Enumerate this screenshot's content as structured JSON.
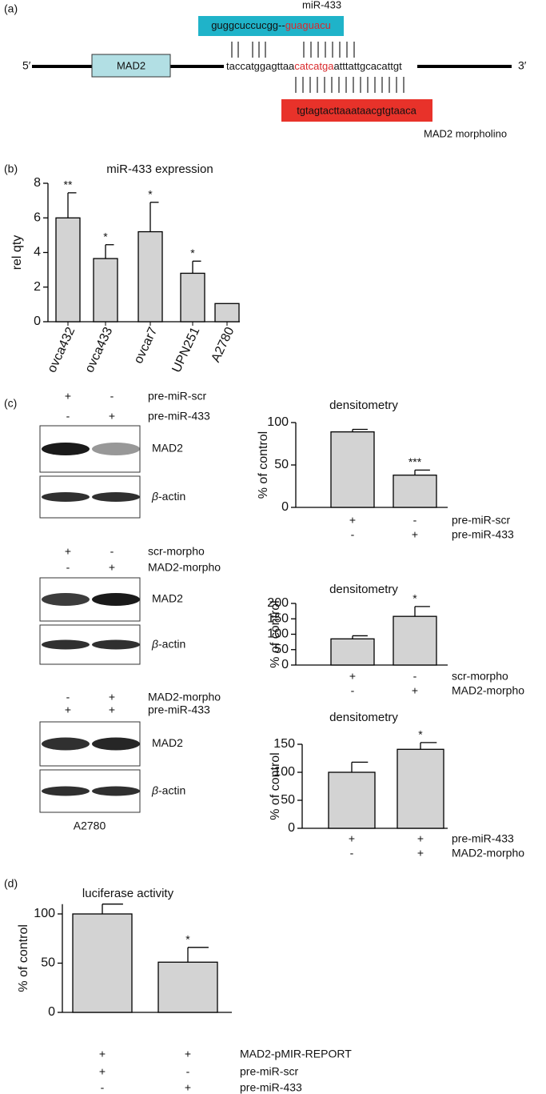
{
  "panel_labels": [
    "(a)",
    "(b)",
    "(c)",
    "(d)"
  ],
  "diagram": {
    "mirna_name": "miR-433",
    "mirna_seq": [
      "guggcuccucgg--",
      "guaguacu"
    ],
    "five_prime": "5′",
    "gene": "MAD2",
    "target_seq": [
      "taccatggagttaa",
      "catcatga",
      "atttattgcacattgt"
    ],
    "three_prime": "3′",
    "morpholino_seq": "tgtagtacttaaataacgtgtaaca",
    "morpholino_name": "MAD2 morpholino"
  },
  "blots": [
    {
      "rows": [
        {
          "signs": [
            "+",
            "-"
          ],
          "name": "pre-miR-scr"
        },
        {
          "signs": [
            "-",
            "+"
          ],
          "name": "pre-miR-433"
        }
      ],
      "band": "MAD2",
      "actin": [
        "β",
        "-actin"
      ]
    },
    {
      "rows": [
        {
          "signs": [
            "+",
            "-"
          ],
          "name": "scr-morpho"
        },
        {
          "signs": [
            "-",
            "+"
          ],
          "name": "MAD2-morpho"
        }
      ],
      "band": "MAD2",
      "actin": [
        "β",
        "-actin"
      ]
    },
    {
      "rows": [
        {
          "signs": [
            "-",
            "+"
          ],
          "name": "MAD2-morpho"
        },
        {
          "signs": [
            "+",
            "+"
          ],
          "name": "pre-miR-433"
        }
      ],
      "band": "MAD2",
      "actin": [
        "β",
        "-actin"
      ]
    }
  ],
  "cell_line": "A2780",
  "chart_data": [
    {
      "type": "bar",
      "title": "miR-433 expression",
      "y_label": "rel qty",
      "categories": [
        "ovca432",
        "ovca433",
        "ovcar7",
        "UPN251",
        "A2780"
      ],
      "values": [
        6,
        3.65,
        5.2,
        2.8,
        1.05
      ],
      "errors": [
        1.45,
        0.8,
        1.7,
        0.7,
        null
      ],
      "annotations": [
        "**",
        "*",
        "*",
        "*",
        null
      ],
      "ylim": [
        0,
        8
      ],
      "yticks": [
        0,
        2,
        4,
        6,
        8
      ],
      "color": "#d3d3d3"
    },
    {
      "type": "bar",
      "title": "densitometry",
      "y_label": "% of control",
      "values": [
        89,
        38
      ],
      "errors": [
        3,
        6
      ],
      "annotations": [
        null,
        "***"
      ],
      "conditions": [
        {
          "name": "pre-miR-scr",
          "signs": [
            "+",
            "-"
          ]
        },
        {
          "name": "pre-miR-433",
          "signs": [
            "-",
            "+"
          ]
        }
      ],
      "ylim": [
        0,
        100
      ],
      "yticks": [
        0,
        50,
        100
      ],
      "color": "#d3d3d3"
    },
    {
      "type": "bar",
      "title": "densitometry",
      "y_label": "% of control",
      "values": [
        85,
        158
      ],
      "errors": [
        10,
        32
      ],
      "annotations": [
        null,
        "*"
      ],
      "conditions": [
        {
          "name": "scr-morpho",
          "signs": [
            "+",
            "-"
          ]
        },
        {
          "name": "MAD2-morpho",
          "signs": [
            "-",
            "+"
          ]
        }
      ],
      "ylim": [
        0,
        200
      ],
      "yticks": [
        0,
        50,
        100,
        150,
        200
      ],
      "color": "#d3d3d3"
    },
    {
      "type": "bar",
      "title": "densitometry",
      "y_label": "% of control",
      "values": [
        100,
        141
      ],
      "errors": [
        18,
        12
      ],
      "annotations": [
        null,
        "*"
      ],
      "conditions": [
        {
          "name": "pre-miR-433",
          "signs": [
            "+",
            "+"
          ]
        },
        {
          "name": "MAD2-morpho",
          "signs": [
            "-",
            "+"
          ]
        }
      ],
      "ylim": [
        0,
        150
      ],
      "yticks": [
        0,
        50,
        100,
        150
      ],
      "color": "#d3d3d3"
    },
    {
      "type": "bar",
      "title": "luciferase activity",
      "y_label": "% of control",
      "values": [
        100,
        51
      ],
      "errors": [
        10,
        15
      ],
      "annotations": [
        null,
        "*"
      ],
      "conditions": [
        {
          "name": "MAD2-pMIR-REPORT",
          "signs": [
            "+",
            "+"
          ]
        },
        {
          "name": "pre-miR-scr",
          "signs": [
            "+",
            "-"
          ]
        },
        {
          "name": "pre-miR-433",
          "signs": [
            "-",
            "+"
          ]
        }
      ],
      "ylim": [
        0,
        110
      ],
      "yticks": [
        0,
        50,
        100
      ],
      "color": "#d3d3d3"
    }
  ]
}
